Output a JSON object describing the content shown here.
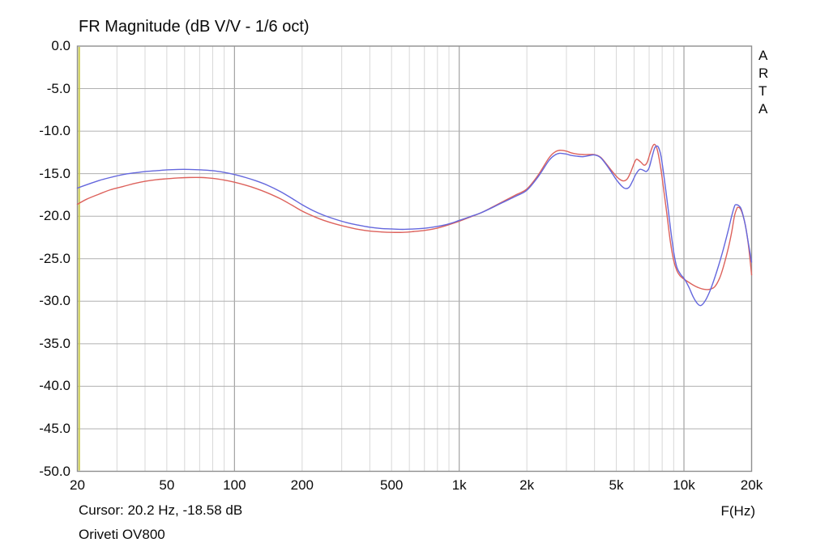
{
  "title": "FR Magnitude (dB V/V - 1/6 oct)",
  "watermark": "ARTA",
  "footer": {
    "cursor_readout": "Cursor: 20.2 Hz, -18.58 dB",
    "device_label": "Oriveti OV800",
    "x_axis_label": "F(Hz)"
  },
  "colors": {
    "background": "#ffffff",
    "border": "#8f8f8f",
    "grid_horizontal": "#b0b0b0",
    "grid_vertical_minor": "#d8d8d8",
    "grid_vertical_major": "#a2a2a2",
    "cursor_line": "#c9c94d",
    "series_blue": "#6467dd",
    "series_red": "#dd625c",
    "text": "#0a0a0a"
  },
  "chart_data": {
    "type": "line",
    "title": "FR Magnitude (dB V/V - 1/6 oct)",
    "xlabel": "F(Hz)",
    "ylabel": "dB V/V",
    "x_scale": "log",
    "xlim": [
      20,
      20000
    ],
    "ylim": [
      -50,
      0
    ],
    "grid": "on",
    "legend": "none",
    "x_ticks": [
      {
        "label": "20",
        "hz": 20
      },
      {
        "label": "50",
        "hz": 50
      },
      {
        "label": "100",
        "hz": 100
      },
      {
        "label": "200",
        "hz": 200
      },
      {
        "label": "500",
        "hz": 500
      },
      {
        "label": "1k",
        "hz": 1000
      },
      {
        "label": "2k",
        "hz": 2000
      },
      {
        "label": "5k",
        "hz": 5000
      },
      {
        "label": "10k",
        "hz": 10000
      },
      {
        "label": "20k",
        "hz": 20000
      }
    ],
    "y_ticks": [
      {
        "label": "0.0",
        "db": 0
      },
      {
        "label": "-5.0",
        "db": -5
      },
      {
        "label": "-10.0",
        "db": -10
      },
      {
        "label": "-15.0",
        "db": -15
      },
      {
        "label": "-20.0",
        "db": -20
      },
      {
        "label": "-25.0",
        "db": -25
      },
      {
        "label": "-30.0",
        "db": -30
      },
      {
        "label": "-35.0",
        "db": -35
      },
      {
        "label": "-40.0",
        "db": -40
      },
      {
        "label": "-45.0",
        "db": -45
      },
      {
        "label": "-50.0",
        "db": -50
      }
    ],
    "minor_gridlines_hz": [
      30,
      40,
      50,
      60,
      70,
      80,
      90,
      200,
      300,
      400,
      500,
      600,
      700,
      800,
      900,
      2000,
      3000,
      4000,
      5000,
      6000,
      7000,
      8000,
      9000
    ],
    "major_gridlines_hz": [
      100,
      1000,
      10000
    ],
    "horizontal_gridlines_db": [
      -5,
      -10,
      -15,
      -20,
      -25,
      -30,
      -35,
      -40,
      -45
    ],
    "cursor": {
      "hz": 20.2,
      "db": -18.58
    },
    "series": [
      {
        "name": "channel-blue",
        "color": "#6467dd",
        "points": [
          [
            20,
            -16.7
          ],
          [
            22,
            -16.3
          ],
          [
            25,
            -15.8
          ],
          [
            28,
            -15.45
          ],
          [
            32,
            -15.1
          ],
          [
            36,
            -14.9
          ],
          [
            40,
            -14.75
          ],
          [
            45,
            -14.65
          ],
          [
            50,
            -14.55
          ],
          [
            56,
            -14.5
          ],
          [
            63,
            -14.5
          ],
          [
            71,
            -14.55
          ],
          [
            80,
            -14.65
          ],
          [
            90,
            -14.85
          ],
          [
            100,
            -15.1
          ],
          [
            112,
            -15.45
          ],
          [
            125,
            -15.85
          ],
          [
            140,
            -16.35
          ],
          [
            160,
            -17.1
          ],
          [
            180,
            -17.9
          ],
          [
            200,
            -18.65
          ],
          [
            224,
            -19.35
          ],
          [
            250,
            -19.9
          ],
          [
            280,
            -20.35
          ],
          [
            315,
            -20.75
          ],
          [
            355,
            -21.05
          ],
          [
            400,
            -21.3
          ],
          [
            450,
            -21.45
          ],
          [
            500,
            -21.5
          ],
          [
            560,
            -21.55
          ],
          [
            630,
            -21.5
          ],
          [
            710,
            -21.4
          ],
          [
            800,
            -21.2
          ],
          [
            900,
            -20.9
          ],
          [
            1000,
            -20.5
          ],
          [
            1120,
            -20.05
          ],
          [
            1250,
            -19.6
          ],
          [
            1400,
            -19.0
          ],
          [
            1600,
            -18.25
          ],
          [
            1800,
            -17.6
          ],
          [
            2000,
            -16.95
          ],
          [
            2240,
            -15.4
          ],
          [
            2500,
            -13.5
          ],
          [
            2650,
            -12.85
          ],
          [
            2800,
            -12.6
          ],
          [
            3000,
            -12.7
          ],
          [
            3150,
            -12.85
          ],
          [
            3350,
            -12.95
          ],
          [
            3550,
            -13.0
          ],
          [
            3750,
            -12.9
          ],
          [
            4000,
            -12.8
          ],
          [
            4250,
            -13.1
          ],
          [
            4500,
            -13.9
          ],
          [
            4750,
            -14.8
          ],
          [
            5000,
            -15.7
          ],
          [
            5300,
            -16.5
          ],
          [
            5500,
            -16.75
          ],
          [
            5700,
            -16.6
          ],
          [
            5900,
            -15.9
          ],
          [
            6100,
            -15.1
          ],
          [
            6350,
            -14.5
          ],
          [
            6600,
            -14.6
          ],
          [
            6800,
            -14.75
          ],
          [
            7000,
            -14.3
          ],
          [
            7200,
            -13.1
          ],
          [
            7400,
            -12.0
          ],
          [
            7550,
            -11.75
          ],
          [
            7700,
            -11.9
          ],
          [
            7900,
            -12.9
          ],
          [
            8100,
            -14.8
          ],
          [
            8400,
            -18.0
          ],
          [
            8700,
            -21.3
          ],
          [
            9000,
            -24.2
          ],
          [
            9300,
            -26.0
          ],
          [
            9700,
            -26.9
          ],
          [
            10000,
            -27.3
          ],
          [
            10500,
            -28.3
          ],
          [
            11000,
            -29.5
          ],
          [
            11500,
            -30.3
          ],
          [
            11900,
            -30.5
          ],
          [
            12400,
            -30.0
          ],
          [
            13000,
            -28.9
          ],
          [
            13600,
            -27.5
          ],
          [
            14300,
            -25.7
          ],
          [
            15000,
            -23.8
          ],
          [
            15800,
            -21.5
          ],
          [
            16300,
            -20.0
          ],
          [
            16800,
            -18.8
          ],
          [
            17100,
            -18.65
          ],
          [
            17500,
            -18.75
          ],
          [
            18000,
            -19.2
          ],
          [
            18700,
            -20.9
          ],
          [
            19300,
            -23.0
          ],
          [
            20000,
            -25.4
          ]
        ]
      },
      {
        "name": "channel-red",
        "color": "#dd625c",
        "points": [
          [
            20,
            -18.6
          ],
          [
            22,
            -18.0
          ],
          [
            25,
            -17.4
          ],
          [
            28,
            -16.9
          ],
          [
            32,
            -16.5
          ],
          [
            36,
            -16.15
          ],
          [
            40,
            -15.9
          ],
          [
            45,
            -15.7
          ],
          [
            50,
            -15.6
          ],
          [
            56,
            -15.5
          ],
          [
            63,
            -15.45
          ],
          [
            71,
            -15.45
          ],
          [
            80,
            -15.55
          ],
          [
            90,
            -15.75
          ],
          [
            100,
            -16.0
          ],
          [
            112,
            -16.35
          ],
          [
            125,
            -16.75
          ],
          [
            140,
            -17.25
          ],
          [
            160,
            -17.95
          ],
          [
            180,
            -18.7
          ],
          [
            200,
            -19.4
          ],
          [
            224,
            -20.0
          ],
          [
            250,
            -20.5
          ],
          [
            280,
            -20.9
          ],
          [
            315,
            -21.25
          ],
          [
            355,
            -21.55
          ],
          [
            400,
            -21.75
          ],
          [
            450,
            -21.85
          ],
          [
            500,
            -21.9
          ],
          [
            560,
            -21.9
          ],
          [
            630,
            -21.8
          ],
          [
            710,
            -21.65
          ],
          [
            800,
            -21.4
          ],
          [
            900,
            -21.0
          ],
          [
            1000,
            -20.6
          ],
          [
            1120,
            -20.1
          ],
          [
            1250,
            -19.6
          ],
          [
            1400,
            -18.95
          ],
          [
            1600,
            -18.15
          ],
          [
            1800,
            -17.45
          ],
          [
            2000,
            -16.8
          ],
          [
            2240,
            -15.2
          ],
          [
            2500,
            -13.2
          ],
          [
            2650,
            -12.5
          ],
          [
            2800,
            -12.25
          ],
          [
            3000,
            -12.35
          ],
          [
            3150,
            -12.55
          ],
          [
            3350,
            -12.7
          ],
          [
            3550,
            -12.75
          ],
          [
            3750,
            -12.75
          ],
          [
            4000,
            -12.75
          ],
          [
            4250,
            -13.05
          ],
          [
            4500,
            -13.8
          ],
          [
            4750,
            -14.6
          ],
          [
            5000,
            -15.3
          ],
          [
            5200,
            -15.7
          ],
          [
            5400,
            -15.85
          ],
          [
            5600,
            -15.6
          ],
          [
            5800,
            -14.8
          ],
          [
            6000,
            -13.8
          ],
          [
            6150,
            -13.3
          ],
          [
            6400,
            -13.6
          ],
          [
            6650,
            -14.0
          ],
          [
            6850,
            -13.7
          ],
          [
            7050,
            -12.7
          ],
          [
            7250,
            -11.8
          ],
          [
            7400,
            -11.55
          ],
          [
            7550,
            -11.9
          ],
          [
            7700,
            -12.8
          ],
          [
            7900,
            -14.5
          ],
          [
            8100,
            -16.6
          ],
          [
            8400,
            -19.8
          ],
          [
            8700,
            -23.0
          ],
          [
            9000,
            -25.2
          ],
          [
            9300,
            -26.4
          ],
          [
            9600,
            -27.0
          ],
          [
            10000,
            -27.4
          ],
          [
            10400,
            -27.7
          ],
          [
            11000,
            -28.1
          ],
          [
            11600,
            -28.4
          ],
          [
            12300,
            -28.6
          ],
          [
            13000,
            -28.6
          ],
          [
            13700,
            -28.3
          ],
          [
            14400,
            -27.3
          ],
          [
            15000,
            -25.9
          ],
          [
            15800,
            -23.6
          ],
          [
            16300,
            -21.9
          ],
          [
            16800,
            -19.9
          ],
          [
            17200,
            -19.1
          ],
          [
            17400,
            -18.95
          ],
          [
            17800,
            -19.1
          ],
          [
            18300,
            -19.9
          ],
          [
            18800,
            -21.2
          ],
          [
            19400,
            -23.6
          ],
          [
            20000,
            -26.9
          ]
        ]
      }
    ]
  }
}
